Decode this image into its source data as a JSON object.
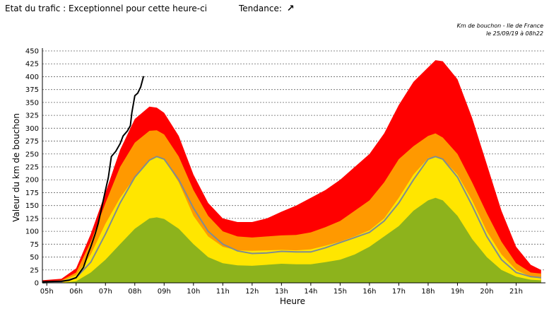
{
  "header": {
    "status_text": "Etat du trafic : Exceptionnel pour cette heure-ci",
    "trend_label": "Tendance:",
    "trend_arrow": "↗",
    "source_line1": "Km de bouchon - Ile de France",
    "source_line2": "le 25/09/19 à 08h22"
  },
  "chart_data": {
    "type": "area",
    "xlabel": "Heure",
    "ylabel": "Valeur du  km de bouchon",
    "ylim": [
      0,
      450
    ],
    "xlim": [
      4.85,
      22.0
    ],
    "y_ticks": [
      0,
      25,
      50,
      75,
      100,
      125,
      150,
      175,
      200,
      225,
      250,
      275,
      300,
      325,
      350,
      375,
      400,
      425,
      450
    ],
    "x_ticks": [
      {
        "value": 5,
        "label": "05h"
      },
      {
        "value": 6,
        "label": "06h"
      },
      {
        "value": 7,
        "label": "07h"
      },
      {
        "value": 8,
        "label": "08h"
      },
      {
        "value": 9,
        "label": "09h"
      },
      {
        "value": 10,
        "label": "10h"
      },
      {
        "value": 11,
        "label": "11h"
      },
      {
        "value": 12,
        "label": "12h"
      },
      {
        "value": 13,
        "label": "13h"
      },
      {
        "value": 14,
        "label": "14h"
      },
      {
        "value": 15,
        "label": "15h"
      },
      {
        "value": 16,
        "label": "16h"
      },
      {
        "value": 17,
        "label": "17h"
      },
      {
        "value": 18,
        "label": "18h"
      },
      {
        "value": 19,
        "label": "19h"
      },
      {
        "value": 20,
        "label": "20h"
      },
      {
        "value": 21,
        "label": "21h"
      }
    ],
    "grid": true,
    "x": [
      4.85,
      5.5,
      6,
      6.5,
      7,
      7.5,
      8,
      8.5,
      8.75,
      9,
      9.5,
      10,
      10.5,
      11,
      11.5,
      12,
      12.5,
      13,
      13.5,
      14,
      14.5,
      15,
      15.5,
      16,
      16.5,
      17,
      17.5,
      18,
      18.25,
      18.5,
      19,
      19.5,
      20,
      20.5,
      21,
      21.5,
      21.85
    ],
    "bands": [
      {
        "color": "#8db31c",
        "values": [
          0,
          0,
          3,
          20,
          45,
          75,
          105,
          125,
          127,
          124,
          105,
          75,
          50,
          38,
          34,
          33,
          35,
          37,
          36,
          36,
          40,
          45,
          55,
          70,
          90,
          110,
          140,
          160,
          165,
          160,
          130,
          85,
          50,
          25,
          12,
          6,
          5
        ]
      },
      {
        "color": "#ffe600",
        "values": [
          0,
          3,
          15,
          55,
          115,
          165,
          205,
          238,
          245,
          240,
          195,
          130,
          90,
          70,
          63,
          62,
          63,
          64,
          63,
          65,
          72,
          80,
          90,
          102,
          125,
          165,
          210,
          242,
          245,
          240,
          210,
          160,
          100,
          55,
          25,
          12,
          10
        ]
      },
      {
        "color": "#ff9900",
        "values": [
          3,
          5,
          20,
          80,
          155,
          225,
          272,
          295,
          296,
          288,
          245,
          180,
          130,
          100,
          90,
          88,
          90,
          92,
          93,
          98,
          108,
          120,
          140,
          160,
          195,
          240,
          265,
          285,
          290,
          282,
          250,
          195,
          135,
          80,
          38,
          20,
          18
        ]
      },
      {
        "color": "#ff0000",
        "values": [
          5,
          8,
          28,
          95,
          175,
          258,
          318,
          342,
          340,
          330,
          285,
          210,
          155,
          125,
          118,
          118,
          125,
          138,
          150,
          165,
          180,
          200,
          225,
          250,
          290,
          345,
          390,
          418,
          432,
          430,
          395,
          320,
          230,
          140,
          70,
          35,
          25
        ]
      }
    ],
    "avg_line": {
      "color": "#7f8c92",
      "values": [
        0,
        2,
        10,
        40,
        95,
        155,
        205,
        238,
        245,
        240,
        200,
        145,
        100,
        75,
        62,
        57,
        58,
        61,
        60,
        60,
        68,
        78,
        88,
        98,
        120,
        155,
        200,
        240,
        245,
        240,
        205,
        150,
        90,
        45,
        20,
        12,
        10
      ]
    },
    "actual_line": {
      "color": "#000000",
      "x": [
        4.85,
        5.5,
        5.75,
        6.0,
        6.25,
        6.4,
        6.5,
        6.65,
        6.75,
        6.85,
        7.0,
        7.1,
        7.2,
        7.35,
        7.5,
        7.6,
        7.75,
        7.85,
        7.9,
        8.0,
        8.1,
        8.2,
        8.3
      ],
      "values": [
        2,
        3,
        5,
        10,
        30,
        55,
        70,
        95,
        115,
        140,
        180,
        205,
        245,
        255,
        270,
        285,
        295,
        305,
        330,
        363,
        368,
        380,
        401
      ]
    }
  }
}
